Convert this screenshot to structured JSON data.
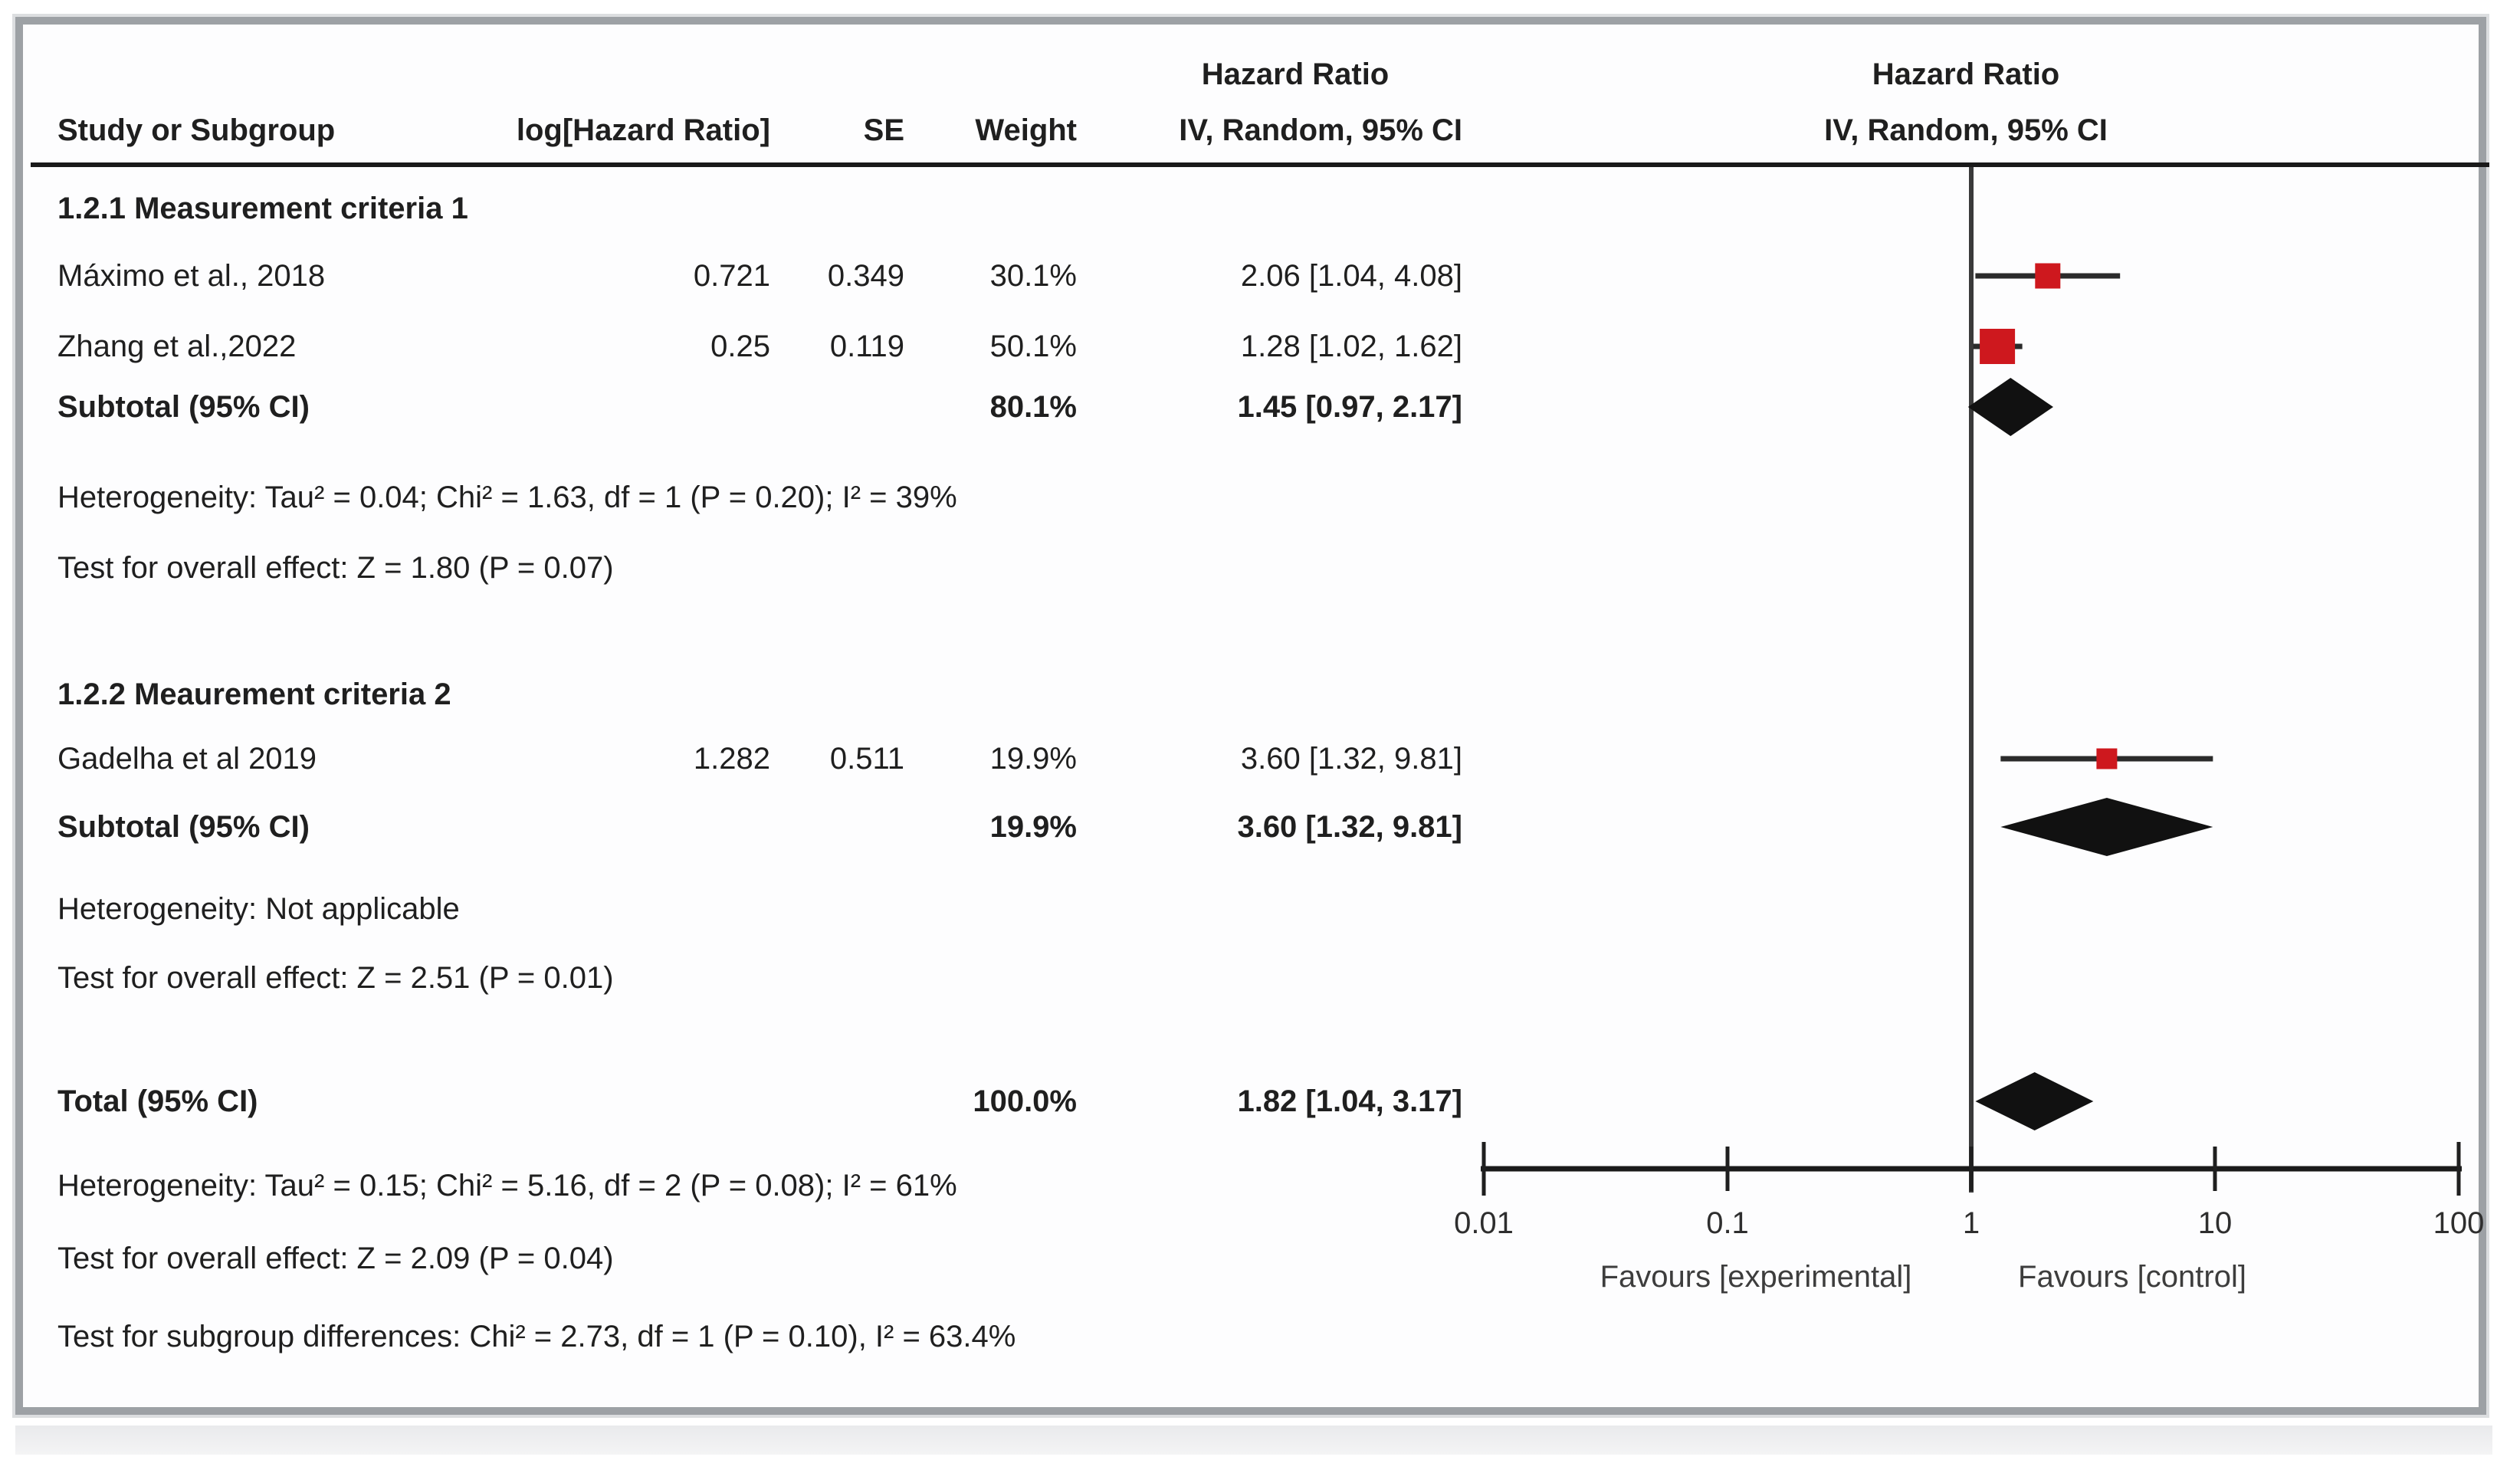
{
  "header": {
    "study": "Study or Subgroup",
    "log_hr": "log[Hazard Ratio]",
    "se": "SE",
    "weight": "Weight",
    "effect_top": "Hazard Ratio",
    "effect_bottom": "IV, Random, 95% CI",
    "plot_top": "Hazard Ratio",
    "plot_bottom": "IV, Random, 95% CI"
  },
  "table": {
    "rows": [
      {
        "style": "heading",
        "label": "1.2.1 Measurement criteria 1"
      },
      {
        "style": "study",
        "label": "Máximo et al., 2018",
        "log": "0.721",
        "se": "0.349",
        "weight": "30.1%",
        "ci": "2.06 [1.04, 4.08]"
      },
      {
        "style": "study",
        "label": "Zhang et al.,2022",
        "log": "0.25",
        "se": "0.119",
        "weight": "50.1%",
        "ci": "1.28 [1.02, 1.62]"
      },
      {
        "style": "subtotal",
        "label": "Subtotal (95% CI)",
        "weight": "80.1%",
        "ci": "1.45 [0.97, 2.17]"
      },
      {
        "style": "note",
        "label": "Heterogeneity: Tau² = 0.04; Chi² = 1.63, df = 1 (P = 0.20); I² = 39%"
      },
      {
        "style": "note",
        "label": "Test for overall effect: Z = 1.80 (P = 0.07)"
      },
      {
        "style": "heading",
        "label": "1.2.2 Meaurement criteria 2"
      },
      {
        "style": "study",
        "label": "Gadelha et al 2019",
        "log": "1.282",
        "se": "0.511",
        "weight": "19.9%",
        "ci": "3.60 [1.32, 9.81]"
      },
      {
        "style": "subtotal",
        "label": "Subtotal (95% CI)",
        "weight": "19.9%",
        "ci": "3.60 [1.32, 9.81]"
      },
      {
        "style": "note",
        "label": "Heterogeneity: Not applicable"
      },
      {
        "style": "note",
        "label": "Test for overall effect: Z = 2.51 (P = 0.01)"
      },
      {
        "style": "subtotal",
        "label": "Total (95% CI)",
        "weight": "100.0%",
        "ci": "1.82 [1.04, 3.17]"
      },
      {
        "style": "note",
        "label": "Heterogeneity: Tau² = 0.15; Chi² = 5.16, df = 2 (P = 0.08); I² = 61%"
      },
      {
        "style": "note",
        "label": "Test for overall effect: Z = 2.09 (P = 0.04)"
      },
      {
        "style": "note",
        "label": "Test for subgroup differences: Chi² = 2.73, df = 1 (P = 0.10), I² = 63.4%"
      }
    ]
  },
  "axis": {
    "ticks": [
      "0.01",
      "0.1",
      "1",
      "10",
      "100"
    ],
    "favours_left": "Favours [experimental]",
    "favours_right": "Favours [control]"
  },
  "colors": {
    "marker_red": "#ce181e",
    "diamond_black": "#111111",
    "line_dark": "#2b2b2b"
  },
  "chart_data": {
    "type": "forest",
    "effect_measure": "Hazard Ratio",
    "model": "IV, Random, 95% CI",
    "x_scale": "log10",
    "x_ticks": [
      0.01,
      0.1,
      1,
      10,
      100
    ],
    "null_line": 1,
    "entries": [
      {
        "kind": "study",
        "label": "Máximo et al., 2018",
        "hr": 2.06,
        "lo": 1.04,
        "hi": 4.08,
        "weight_pct": 30.1
      },
      {
        "kind": "study",
        "label": "Zhang et al.,2022",
        "hr": 1.28,
        "lo": 1.02,
        "hi": 1.62,
        "weight_pct": 50.1
      },
      {
        "kind": "diamond",
        "label": "Subtotal (95% CI) — Measurement criteria 1",
        "hr": 1.45,
        "lo": 0.97,
        "hi": 2.17
      },
      {
        "kind": "study",
        "label": "Gadelha et al 2019",
        "hr": 3.6,
        "lo": 1.32,
        "hi": 9.81,
        "weight_pct": 19.9
      },
      {
        "kind": "diamond",
        "label": "Subtotal (95% CI) — Meaurement criteria 2",
        "hr": 3.6,
        "lo": 1.32,
        "hi": 9.81
      },
      {
        "kind": "diamond",
        "label": "Total (95% CI)",
        "hr": 1.82,
        "lo": 1.04,
        "hi": 3.17
      }
    ],
    "favours_left": "Favours [experimental]",
    "favours_right": "Favours [control]"
  }
}
